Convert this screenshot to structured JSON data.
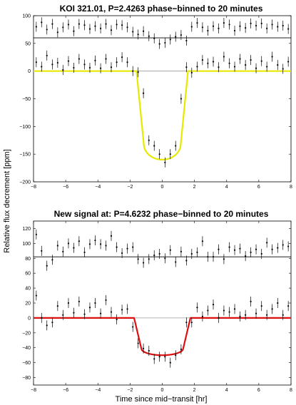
{
  "ylabel": "Relative flux decrement [ppm]",
  "xlabel": "Time since mid−transit [hr]",
  "chart_data": [
    {
      "type": "scatter",
      "title": "KOI 321.01, P=2.4263 phase−binned to 20 minutes",
      "xlim": [
        -8,
        8
      ],
      "ylim": [
        -200,
        100
      ],
      "xticks": [
        -8,
        -6,
        -4,
        -2,
        0,
        2,
        4,
        6,
        8
      ],
      "yticks": [
        -200,
        -150,
        -100,
        -50,
        0,
        50,
        100
      ],
      "offset_baseline": 60,
      "model_color": "#e8e800",
      "model_depth": -160,
      "model_ingress_start": -1.6,
      "model_egress_end": 1.6,
      "series": [
        {
          "x": [
            -7.83,
            -7.5,
            -7.17,
            -6.83,
            -6.5,
            -6.17,
            -5.83,
            -5.5,
            -5.17,
            -4.83,
            -4.5,
            -4.17,
            -3.83,
            -3.5,
            -3.17,
            -2.83,
            -2.5,
            -2.17,
            -1.83,
            -1.5,
            -1.17,
            -0.83,
            -0.5,
            -0.17,
            0.17,
            0.5,
            0.83,
            1.17,
            1.5,
            1.83,
            2.17,
            2.5,
            2.83,
            3.17,
            3.5,
            3.83,
            4.17,
            4.5,
            4.83,
            5.17,
            5.5,
            5.83,
            6.17,
            6.5,
            6.83,
            7.17,
            7.5,
            7.83
          ],
          "y": [
            80,
            88,
            75,
            85,
            70,
            79,
            84,
            72,
            85,
            83,
            76,
            81,
            77,
            85,
            74,
            84,
            83,
            79,
            71,
            66,
            72,
            63,
            59,
            49,
            51,
            57,
            62,
            65,
            55,
            80,
            87,
            79,
            73,
            81,
            77,
            87,
            84,
            73,
            81,
            78,
            86,
            82,
            86,
            77,
            84,
            80,
            82,
            76
          ]
        },
        {
          "x": [
            -7.83,
            -7.5,
            -7.17,
            -6.83,
            -6.5,
            -6.17,
            -5.83,
            -5.5,
            -5.17,
            -4.83,
            -4.5,
            -4.17,
            -3.83,
            -3.5,
            -3.17,
            -2.83,
            -2.5,
            -2.17,
            -1.83,
            -1.5,
            -1.17,
            -0.83,
            -0.5,
            -0.17,
            0.17,
            0.5,
            0.83,
            1.17,
            1.5,
            1.83,
            2.17,
            2.5,
            2.83,
            3.17,
            3.5,
            3.83,
            4.17,
            4.5,
            4.83,
            5.17,
            5.5,
            5.83,
            6.17,
            6.5,
            6.83,
            7.17,
            7.5,
            7.83
          ],
          "y": [
            16,
            8,
            28,
            12,
            15,
            2,
            18,
            6,
            22,
            12,
            6,
            19,
            5,
            22,
            7,
            16,
            25,
            16,
            0,
            -2,
            -40,
            -125,
            -135,
            -150,
            -165,
            -150,
            -135,
            -50,
            7,
            -3,
            8,
            20,
            14,
            17,
            7,
            26,
            14,
            8,
            22,
            11,
            20,
            5,
            18,
            8,
            26,
            11,
            4,
            17
          ]
        }
      ]
    },
    {
      "type": "scatter",
      "title": "New signal at: P=4.6232 phase−binned to 20 minutes",
      "xlim": [
        -8,
        8
      ],
      "ylim": [
        -90,
        130
      ],
      "xticks": [
        -8,
        -6,
        -4,
        -2,
        0,
        2,
        4,
        6,
        8
      ],
      "yticks": [
        -80,
        -60,
        -40,
        -20,
        0,
        20,
        40,
        60,
        80,
        100,
        120
      ],
      "offset_baseline": 82,
      "model_color": "#dd1010",
      "model_depth": -50,
      "model_ingress_start": -1.75,
      "model_egress_end": 1.75,
      "series": [
        {
          "x": [
            -7.83,
            -7.5,
            -7.17,
            -6.83,
            -6.5,
            -6.17,
            -5.83,
            -5.5,
            -5.17,
            -4.83,
            -4.5,
            -4.17,
            -3.83,
            -3.5,
            -3.17,
            -2.83,
            -2.5,
            -2.17,
            -1.83,
            -1.5,
            -1.17,
            -0.83,
            -0.5,
            -0.17,
            0.17,
            0.5,
            0.83,
            1.17,
            1.5,
            1.83,
            2.17,
            2.5,
            2.83,
            3.17,
            3.5,
            3.83,
            4.17,
            4.5,
            4.83,
            5.17,
            5.5,
            5.83,
            6.17,
            6.5,
            6.83,
            7.17,
            7.5,
            7.83
          ],
          "y": [
            112,
            90,
            70,
            78,
            97,
            89,
            100,
            94,
            103,
            88,
            99,
            104,
            99,
            97,
            110,
            95,
            87,
            93,
            95,
            79,
            74,
            79,
            84,
            86,
            80,
            91,
            75,
            89,
            77,
            86,
            88,
            103,
            82,
            82,
            92,
            79,
            95,
            91,
            93,
            83,
            88,
            92,
            86,
            101,
            92,
            94,
            98,
            96
          ]
        },
        {
          "x": [
            -7.83,
            -7.5,
            -7.17,
            -6.83,
            -6.5,
            -6.17,
            -5.83,
            -5.5,
            -5.17,
            -4.83,
            -4.5,
            -4.17,
            -3.83,
            -3.5,
            -3.17,
            -2.83,
            -2.5,
            -2.17,
            -1.83,
            -1.5,
            -1.17,
            -0.83,
            -0.5,
            -0.17,
            0.17,
            0.5,
            0.83,
            1.17,
            1.5,
            1.83,
            2.17,
            2.5,
            2.83,
            3.17,
            3.5,
            3.83,
            4.17,
            4.5,
            4.83,
            5.17,
            5.5,
            5.83,
            6.17,
            6.5,
            6.83,
            7.17,
            7.5,
            7.83
          ],
          "y": [
            30,
            0,
            -10,
            -6,
            16,
            4,
            20,
            7,
            22,
            5,
            14,
            20,
            6,
            24,
            8,
            -2,
            11,
            12,
            -12,
            -34,
            -41,
            -44,
            -55,
            -52,
            -52,
            -60,
            -50,
            -42,
            -6,
            -6,
            14,
            2,
            10,
            18,
            0,
            10,
            8,
            12,
            2,
            4,
            22,
            6,
            16,
            4,
            12,
            20,
            4,
            16
          ]
        }
      ]
    }
  ]
}
